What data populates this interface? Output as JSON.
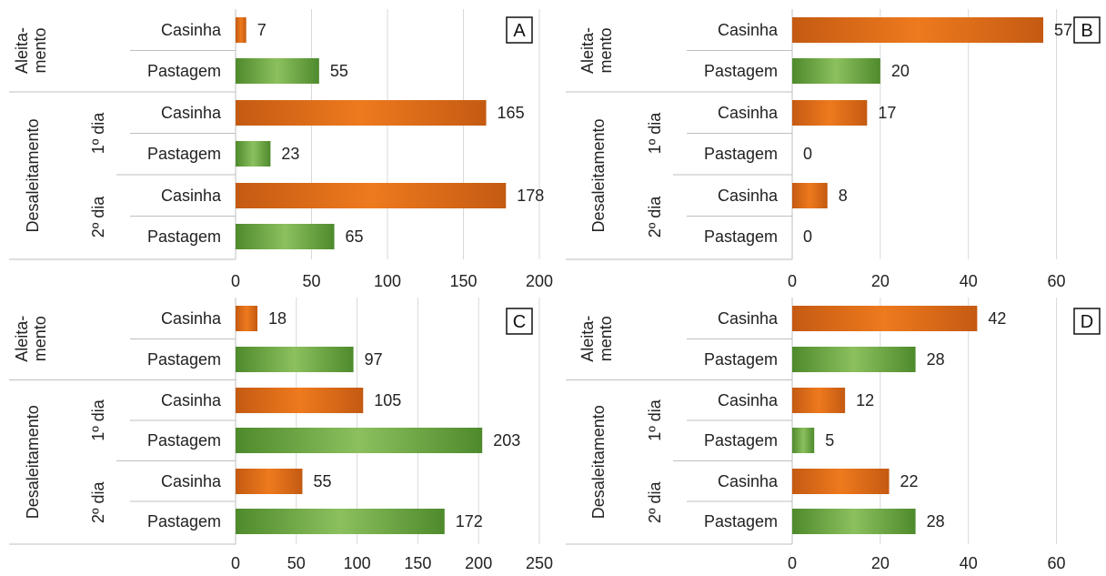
{
  "colors": {
    "casinha": "#E8731C",
    "pastagem": "#6EA53E",
    "grid": "#d9d9d9",
    "separator": "#bfbfbf"
  },
  "row_groups": {
    "aleitamento": "Aleita-\nmento",
    "desaleitamento": "Desaleitamento",
    "dia1": "1º dia",
    "dia2": "2º dia"
  },
  "chart_data": [
    {
      "type": "bar",
      "panel": "A",
      "categories": [
        "Casinha",
        "Pastagem",
        "Casinha",
        "Pastagem",
        "Casinha",
        "Pastagem"
      ],
      "values": [
        7,
        55,
        165,
        23,
        178,
        65
      ],
      "xticks": [
        0,
        50,
        100,
        150,
        200
      ],
      "xlim": [
        0,
        200
      ],
      "title": "",
      "xlabel": "",
      "ylabel": ""
    },
    {
      "type": "bar",
      "panel": "B",
      "categories": [
        "Casinha",
        "Pastagem",
        "Casinha",
        "Pastagem",
        "Casinha",
        "Pastagem"
      ],
      "values": [
        57,
        20,
        17,
        0,
        8,
        0
      ],
      "xticks": [
        0,
        20,
        40,
        60
      ],
      "xlim": [
        0,
        70
      ],
      "title": "",
      "xlabel": "",
      "ylabel": ""
    },
    {
      "type": "bar",
      "panel": "C",
      "categories": [
        "Casinha",
        "Pastagem",
        "Casinha",
        "Pastagem",
        "Casinha",
        "Pastagem"
      ],
      "values": [
        18,
        97,
        105,
        203,
        55,
        172
      ],
      "xticks": [
        0,
        50,
        100,
        150,
        200,
        250
      ],
      "xlim": [
        0,
        250
      ],
      "title": "",
      "xlabel": "",
      "ylabel": ""
    },
    {
      "type": "bar",
      "panel": "D",
      "categories": [
        "Casinha",
        "Pastagem",
        "Casinha",
        "Pastagem",
        "Casinha",
        "Pastagem"
      ],
      "values": [
        42,
        28,
        12,
        5,
        22,
        28
      ],
      "xticks": [
        0,
        20,
        40,
        60
      ],
      "xlim": [
        0,
        70
      ],
      "title": "",
      "xlabel": "",
      "ylabel": ""
    }
  ]
}
